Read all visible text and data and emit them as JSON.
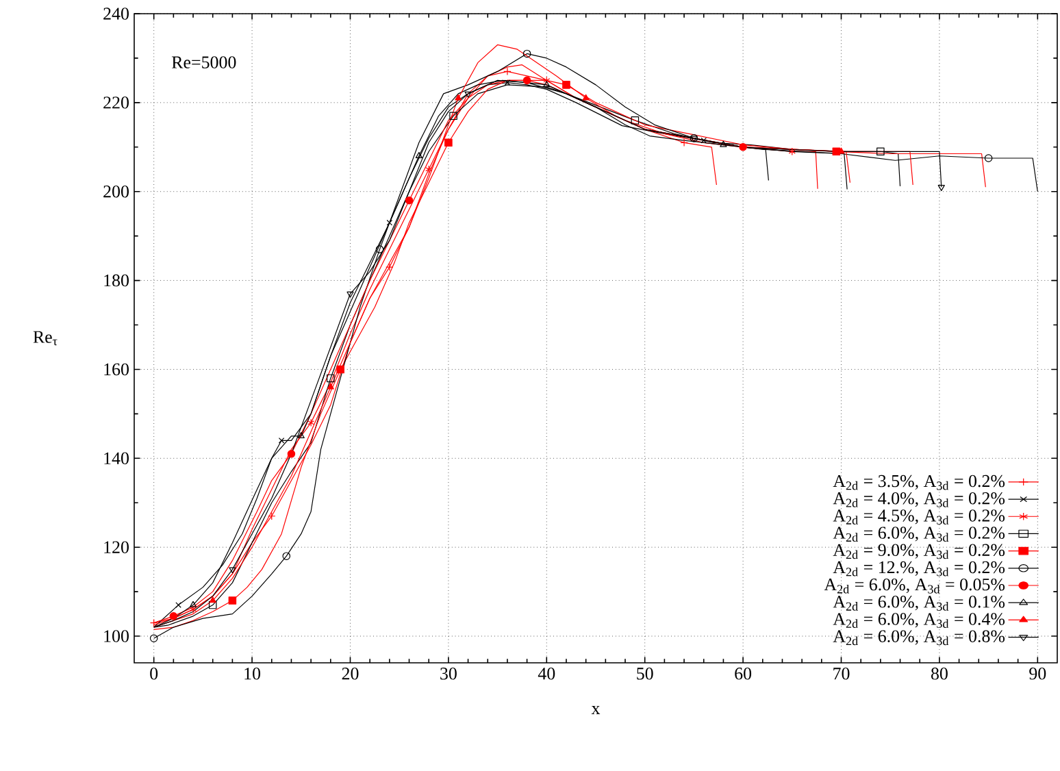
{
  "chart_data": {
    "type": "line",
    "xlabel": "x",
    "ylabel": "Re$_{τ}$",
    "annotations": [
      "Re=5000"
    ],
    "xlim": [
      -2,
      92
    ],
    "ylim": [
      94,
      240
    ],
    "xticks": [
      0,
      10,
      20,
      30,
      40,
      50,
      60,
      70,
      80,
      90
    ],
    "yticks": [
      100,
      120,
      140,
      160,
      180,
      200,
      220,
      240
    ],
    "grid": true,
    "legend": "bottom right",
    "line_style": "solid",
    "series": [
      {
        "name": "A$_{2d}$ = 3.5%, A$_{3d}$ = 0.2%",
        "color": "#ff0000",
        "x": [
          0,
          2,
          4,
          6,
          8,
          10,
          12,
          14,
          16,
          18,
          20,
          22,
          24,
          26,
          28,
          30,
          32,
          34,
          36,
          38,
          40,
          43,
          46,
          50,
          54,
          56.8,
          57.3
        ],
        "values": [
          103,
          104,
          106,
          109,
          114,
          121,
          127,
          135,
          143,
          152,
          166,
          176,
          183,
          192,
          204,
          214,
          221,
          226,
          227,
          226,
          225,
          221,
          218,
          214,
          211,
          210,
          201.5
        ]
      },
      {
        "name": "A$_{2d}$ = 4.0%, A$_{3d}$ = 0.2%",
        "color": "#000000",
        "x": [
          0,
          2.5,
          5,
          7,
          9,
          10.5,
          12,
          13,
          14,
          16,
          18,
          20,
          22,
          24,
          26,
          28,
          30,
          32,
          34,
          36,
          38,
          40,
          43,
          47.7,
          52,
          56,
          60,
          62.3,
          62.6
        ],
        "values": [
          102,
          107,
          111,
          116,
          123,
          131,
          140,
          144,
          144,
          150,
          163,
          175,
          184,
          193,
          203,
          212,
          219,
          222,
          224,
          224.5,
          224,
          223,
          220,
          214.8,
          213,
          211.5,
          210,
          209.5,
          202.5
        ]
      },
      {
        "name": "A$_{2d}$ = 4.5%, A$_{3d}$ = 0.2%",
        "color": "#ff0000",
        "x": [
          0,
          2,
          4,
          6,
          8,
          10,
          12,
          14,
          16,
          18,
          20,
          22,
          24,
          26,
          28,
          30,
          32,
          34,
          36,
          37.5,
          40,
          43,
          46,
          50,
          55,
          60,
          65,
          67.4,
          67.6
        ],
        "values": [
          102.5,
          104,
          106,
          109,
          114,
          124,
          133,
          142,
          148,
          157,
          168,
          178,
          187,
          196,
          205,
          214,
          222,
          226,
          228,
          228.5,
          225,
          221,
          218,
          214,
          212,
          210,
          209,
          209,
          200.6
        ]
      },
      {
        "name": "A$_{2d}$ = 6.0%, A$_{3d}$ = 0.2%",
        "color": "#000000",
        "x": [
          0,
          1.5,
          4,
          6,
          8,
          10,
          12,
          14,
          16,
          18,
          20,
          22,
          24,
          26,
          28,
          30.5,
          33,
          36,
          40,
          42,
          45.5,
          49,
          53,
          57,
          60.8,
          65,
          70,
          74,
          75.8,
          76
        ],
        "values": [
          102,
          102.5,
          104.5,
          107,
          112,
          121,
          130,
          137,
          143.5,
          158,
          170,
          180,
          190,
          200,
          209,
          217,
          222,
          224,
          223.5,
          222,
          219,
          216,
          213,
          211,
          210.5,
          209.5,
          209,
          209,
          208.5,
          201.2
        ]
      },
      {
        "name": "A$_{2d}$ = 9.0%, A$_{3d}$ = 0.2%",
        "color": "#ff0000",
        "x": [
          0,
          2,
          4,
          6,
          8,
          9.5,
          11,
          13,
          15,
          17,
          19,
          21,
          22.5,
          24.5,
          26,
          28,
          30,
          32,
          34,
          36,
          38,
          40,
          42,
          45,
          50,
          54.5,
          60,
          65,
          69.5,
          75,
          80,
          84.3,
          84.7
        ],
        "values": [
          101.5,
          102,
          103.5,
          105.5,
          108,
          111,
          115,
          123,
          138,
          150,
          160,
          168,
          174,
          184,
          193,
          202,
          211,
          218,
          223,
          225,
          225,
          225,
          224,
          220,
          215,
          213,
          210.5,
          209.5,
          209,
          208.5,
          208.5,
          208.5,
          201
        ]
      },
      {
        "name": "A$_{2d}$ = 12.%, A$_{3d}$ = 0.2%",
        "color": "#000000",
        "x": [
          0,
          2,
          5,
          8,
          10,
          12,
          13.5,
          15,
          16,
          17,
          19,
          21,
          23,
          25,
          27,
          29.5,
          32,
          35,
          38,
          40,
          42,
          45,
          48,
          51,
          55,
          60,
          65,
          70,
          75.5,
          80,
          85,
          89.5,
          90
        ],
        "values": [
          99.5,
          102,
          104,
          105,
          109,
          114,
          118,
          123,
          128,
          142,
          158,
          174,
          187,
          199,
          211,
          222,
          224,
          227,
          231,
          230,
          228,
          224,
          219,
          215,
          212,
          210,
          209,
          208.5,
          207,
          208,
          207.5,
          207.5,
          200
        ]
      },
      {
        "name": "A$_{2d}$ = 6.0%, A$_{3d}$ = 0.05%",
        "color": "#ff0000",
        "x": [
          0,
          2,
          4,
          6,
          8,
          10.5,
          12,
          14,
          16,
          18,
          20,
          22,
          24,
          26,
          28,
          30,
          32,
          34,
          36,
          38,
          40,
          44,
          48,
          52,
          56,
          60,
          65,
          70.5,
          70.9
        ],
        "values": [
          103,
          104.5,
          106.5,
          110,
          117,
          128,
          135,
          141,
          150,
          160,
          170,
          180,
          189,
          198,
          207,
          216,
          221,
          224,
          225,
          225,
          224,
          220,
          216,
          213,
          211,
          210,
          209.5,
          209,
          202
        ]
      },
      {
        "name": "A$_{2d}$ = 6.0%, A$_{3d}$ = 0.1%",
        "color": "#000000",
        "x": [
          0,
          2,
          4,
          6,
          8,
          10.3,
          12,
          14,
          15,
          16,
          18,
          20,
          22,
          25,
          27,
          29,
          31,
          33,
          35.5,
          38,
          40,
          42,
          45,
          48,
          50.5,
          54,
          58,
          62,
          66,
          70.3,
          70.6
        ],
        "values": [
          102,
          104,
          107,
          112,
          121,
          132,
          140,
          145,
          145,
          150,
          163,
          173,
          183,
          198,
          208,
          217,
          222,
          224,
          225,
          224.5,
          224,
          222,
          219,
          215,
          212.5,
          211.5,
          210.5,
          209.5,
          209,
          208.5,
          200.5
        ]
      },
      {
        "name": "A$_{2d}$ = 6.0%, A$_{3d}$ = 0.4%",
        "color": "#ff0000",
        "x": [
          0,
          2,
          4,
          6,
          8,
          10,
          12,
          14,
          16,
          18,
          20,
          22,
          24,
          26,
          28,
          31,
          33,
          35,
          37,
          39,
          41,
          44,
          47,
          50,
          55,
          60,
          65,
          70,
          75,
          77,
          77.3
        ],
        "values": [
          102,
          103.5,
          105,
          108,
          113,
          120,
          128,
          136,
          146,
          156,
          166,
          176,
          184,
          192,
          203,
          221,
          229,
          233,
          232,
          229,
          226,
          221,
          217,
          214,
          212,
          210,
          209.5,
          209,
          209,
          209,
          201.5
        ]
      },
      {
        "name": "A$_{2d}$ = 6.0%, A$_{3d}$ = 0.8%",
        "color": "#000000",
        "x": [
          0,
          2,
          4,
          6,
          8,
          10,
          12,
          14,
          16,
          18,
          20,
          22,
          24,
          26,
          28,
          30,
          32,
          35,
          38,
          42,
          46,
          50,
          55,
          60,
          64.5,
          70,
          75,
          80,
          80.2
        ],
        "values": [
          102,
          103.5,
          105.5,
          109,
          115,
          123,
          131,
          141,
          153,
          165,
          177,
          182,
          189,
          200,
          211,
          218,
          222,
          225,
          224.5,
          222,
          218,
          214,
          212,
          210,
          209.5,
          209,
          209,
          209,
          201
        ]
      }
    ]
  }
}
